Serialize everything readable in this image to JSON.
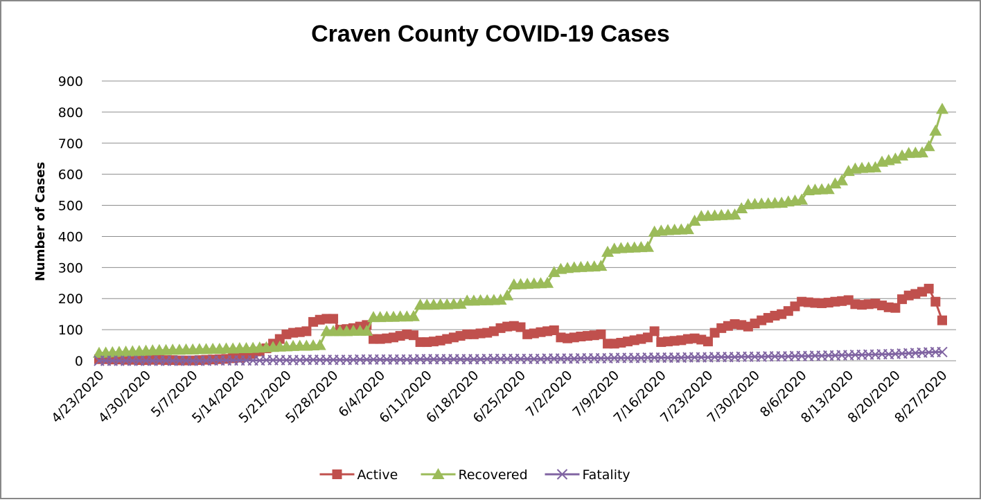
{
  "chart_data": {
    "type": "line",
    "title": "Craven County COVID-19 Cases",
    "y_label": "Number of Cases",
    "categories": [
      "4/23/2020",
      null,
      null,
      null,
      null,
      null,
      null,
      "4/30/2020",
      null,
      null,
      null,
      null,
      null,
      null,
      "5/7/2020",
      null,
      null,
      null,
      null,
      null,
      null,
      "5/14/2020",
      null,
      null,
      null,
      null,
      null,
      null,
      "5/21/2020",
      null,
      null,
      null,
      null,
      null,
      null,
      "5/28/2020",
      null,
      null,
      null,
      null,
      null,
      null,
      "6/4/2020",
      null,
      null,
      null,
      null,
      null,
      null,
      "6/11/2020",
      null,
      null,
      null,
      null,
      null,
      null,
      "6/18/2020",
      null,
      null,
      null,
      null,
      null,
      null,
      "6/25/2020",
      null,
      null,
      null,
      null,
      null,
      null,
      "7/2/2020",
      null,
      null,
      null,
      null,
      null,
      null,
      "7/9/2020",
      null,
      null,
      null,
      null,
      null,
      null,
      "7/16/2020",
      null,
      null,
      null,
      null,
      null,
      null,
      "7/23/2020",
      null,
      null,
      null,
      null,
      null,
      null,
      "7/30/2020",
      null,
      null,
      null,
      null,
      null,
      null,
      "8/6/2020",
      null,
      null,
      null,
      null,
      null,
      null,
      "8/13/2020",
      null,
      null,
      null,
      null,
      null,
      null,
      "8/20/2020",
      null,
      null,
      null,
      null,
      null,
      null,
      "8/27/2020"
    ],
    "series": [
      {
        "name": "Active",
        "color": "#c0504d",
        "marker": "square",
        "values": [
          5,
          5,
          4,
          4,
          3,
          3,
          2,
          2,
          3,
          3,
          2,
          2,
          1,
          1,
          1,
          2,
          3,
          4,
          5,
          6,
          8,
          10,
          15,
          22,
          30,
          40,
          55,
          70,
          85,
          90,
          92,
          95,
          125,
          132,
          135,
          135,
          100,
          102,
          105,
          110,
          115,
          70,
          70,
          72,
          75,
          80,
          85,
          82,
          60,
          60,
          62,
          65,
          70,
          75,
          80,
          85,
          85,
          88,
          90,
          95,
          105,
          110,
          112,
          108,
          85,
          88,
          92,
          95,
          98,
          75,
          72,
          75,
          78,
          80,
          82,
          85,
          55,
          55,
          58,
          62,
          66,
          70,
          75,
          95,
          60,
          62,
          64,
          66,
          70,
          72,
          68,
          62,
          90,
          105,
          112,
          118,
          115,
          110,
          120,
          130,
          138,
          145,
          150,
          160,
          175,
          190,
          188,
          186,
          185,
          187,
          190,
          192,
          195,
          182,
          180,
          182,
          184,
          178,
          172,
          170,
          198,
          210,
          215,
          222,
          232,
          190,
          130
        ]
      },
      {
        "name": "Recovered",
        "color": "#9bbb59",
        "marker": "triangle",
        "values": [
          25,
          26,
          27,
          28,
          29,
          30,
          31,
          32,
          33,
          34,
          34,
          35,
          35,
          36,
          36,
          37,
          37,
          38,
          38,
          39,
          39,
          40,
          40,
          41,
          42,
          43,
          44,
          45,
          46,
          47,
          48,
          48,
          49,
          50,
          95,
          95,
          95,
          95,
          96,
          96,
          96,
          140,
          140,
          141,
          141,
          142,
          142,
          143,
          180,
          180,
          180,
          181,
          181,
          182,
          183,
          193,
          193,
          194,
          194,
          195,
          196,
          210,
          245,
          246,
          247,
          248,
          249,
          250,
          285,
          295,
          298,
          300,
          301,
          302,
          303,
          305,
          350,
          360,
          362,
          363,
          364,
          365,
          366,
          415,
          418,
          420,
          421,
          422,
          423,
          450,
          465,
          466,
          467,
          468,
          469,
          470,
          490,
          503,
          504,
          505,
          506,
          507,
          508,
          512,
          515,
          518,
          548,
          550,
          551,
          552,
          570,
          580,
          610,
          618,
          620,
          621,
          622,
          640,
          645,
          650,
          660,
          668,
          669,
          670,
          690,
          740,
          810
        ]
      },
      {
        "name": "Fatality",
        "color": "#8064a2",
        "marker": "x",
        "values": [
          0,
          0,
          0,
          0,
          0,
          0,
          0,
          0,
          0,
          0,
          0,
          0,
          0,
          0,
          0,
          0,
          0,
          1,
          1,
          1,
          1,
          1,
          1,
          1,
          1,
          2,
          2,
          2,
          2,
          2,
          2,
          3,
          3,
          3,
          3,
          3,
          3,
          3,
          3,
          4,
          4,
          4,
          4,
          4,
          4,
          4,
          4,
          4,
          5,
          5,
          5,
          5,
          5,
          5,
          5,
          5,
          5,
          5,
          6,
          6,
          6,
          6,
          6,
          6,
          6,
          6,
          6,
          7,
          7,
          7,
          7,
          7,
          8,
          8,
          8,
          8,
          8,
          9,
          9,
          9,
          9,
          9,
          10,
          10,
          10,
          10,
          10,
          10,
          11,
          11,
          11,
          11,
          12,
          12,
          12,
          12,
          13,
          13,
          13,
          13,
          14,
          14,
          14,
          14,
          15,
          15,
          15,
          16,
          16,
          17,
          17,
          18,
          18,
          19,
          19,
          20,
          20,
          21,
          21,
          22,
          23,
          24,
          25,
          26,
          27,
          28,
          28
        ]
      }
    ],
    "ylim": [
      0,
      900
    ],
    "yticks": [
      0,
      100,
      200,
      300,
      400,
      500,
      600,
      700,
      800,
      900
    ],
    "grid": true,
    "legend": "bottom"
  }
}
